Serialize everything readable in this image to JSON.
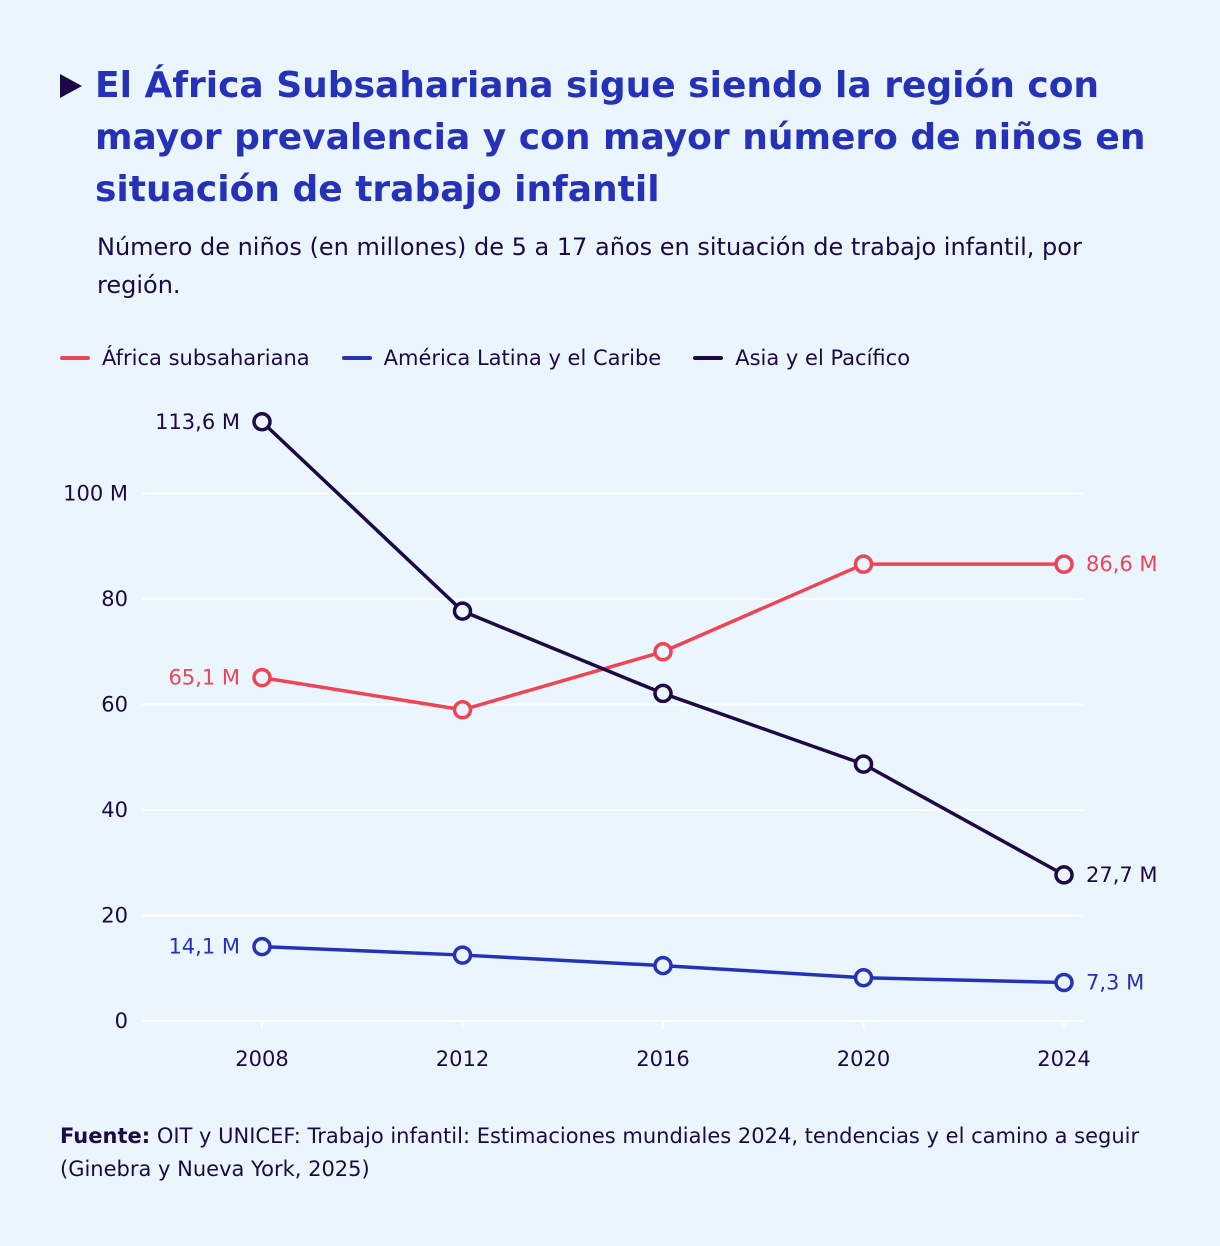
{
  "title": "El África Subsahariana sigue siendo la región con mayor prevalencia y con mayor número de niños en situación de trabajo infantil",
  "subtitle": "Número de niños (en millones) de 5 a 17 años en situación de trabajo infantil, por región.",
  "source": {
    "label": "Fuente:",
    "text": "OIT y UNICEF: Trabajo infantil: Estimaciones mundiales 2024, tendencias y el camino a seguir (Ginebra y Nueva York, 2025)"
  },
  "colors": {
    "background": "#eaf5fd",
    "title": "#2532b8",
    "text": "#1d0a45",
    "grid": "#ffffff"
  },
  "chart_data": {
    "type": "line",
    "x": [
      2008,
      2012,
      2016,
      2020,
      2024
    ],
    "ylim": [
      0,
      115
    ],
    "yticks": [
      0,
      20,
      40,
      60,
      80,
      100
    ],
    "ytick_labels": [
      "0",
      "20",
      "40",
      "60",
      "80",
      "100 M"
    ],
    "xtick_labels": [
      "2008",
      "2012",
      "2016",
      "2020",
      "2024"
    ],
    "grid": true,
    "legend_position": "top-left",
    "series": [
      {
        "name": "África subsahariana",
        "color": "#ef4356",
        "values": [
          65.1,
          59.0,
          70.0,
          86.6,
          86.6
        ],
        "start_label": "65,1 M",
        "end_label": "86,6 M"
      },
      {
        "name": "América Latina y el Caribe",
        "color": "#2532b8",
        "values": [
          14.1,
          12.5,
          10.5,
          8.2,
          7.3
        ],
        "start_label": "14,1 M",
        "end_label": "7,3 M"
      },
      {
        "name": "Asia y el Pacífico",
        "color": "#1d0a45",
        "values": [
          113.6,
          77.7,
          62.1,
          48.7,
          27.7
        ],
        "start_label": "113,6 M",
        "end_label": "27,7 M"
      }
    ]
  }
}
